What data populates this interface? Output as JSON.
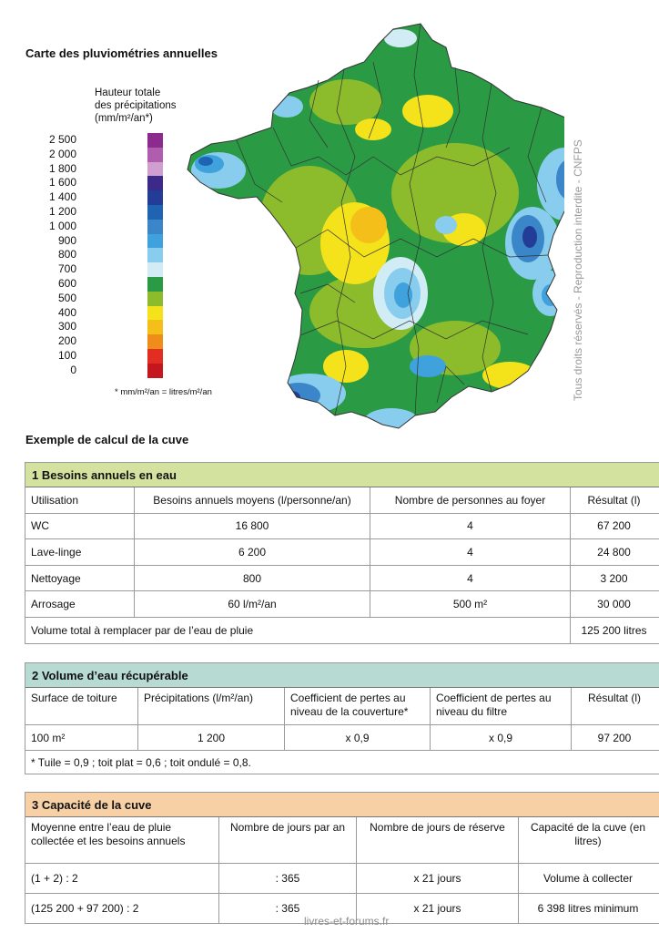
{
  "map_title": "Carte des pluviométries annuelles",
  "legend": {
    "title_lines": [
      "Hauteur totale",
      "des précipitations",
      "(mm/m²/an*)"
    ],
    "items": [
      {
        "label": "2 500",
        "color": "#8d2a8d"
      },
      {
        "label": "2 000",
        "color": "#b05db0"
      },
      {
        "label": "1 800",
        "color": "#cfa0cf"
      },
      {
        "label": "1 600",
        "color": "#3b2a8a"
      },
      {
        "label": "1 400",
        "color": "#223c97"
      },
      {
        "label": "1 200",
        "color": "#1f63b3"
      },
      {
        "label": "1 000",
        "color": "#3b86c8"
      },
      {
        "label": "900",
        "color": "#3fa2dd"
      },
      {
        "label": "800",
        "color": "#88cdee"
      },
      {
        "label": "700",
        "color": "#d2ecf6"
      },
      {
        "label": "600",
        "color": "#2a9a44"
      },
      {
        "label": "500",
        "color": "#8cbc2b"
      },
      {
        "label": "400",
        "color": "#f4e21a"
      },
      {
        "label": "300",
        "color": "#f4bf18"
      },
      {
        "label": "200",
        "color": "#ee8d1a"
      },
      {
        "label": "100",
        "color": "#e32d22"
      },
      {
        "label": "0",
        "color": "#c4161c"
      }
    ],
    "note": "* mm/m²/an = litres/m²/an"
  },
  "watermark": "Tous droits réservés - Reproduction interdite - CNFPS",
  "calc_title": "Exemple de calcul de la cuve",
  "table1": {
    "title": "1 Besoins annuels en eau",
    "headers": [
      "Utilisation",
      "Besoins annuels moyens (l/personne/an)",
      "Nombre de personnes au foyer",
      "Résultat (l)"
    ],
    "rows": [
      [
        "WC",
        "16 800",
        "4",
        "67 200"
      ],
      [
        "Lave-linge",
        "6 200",
        "4",
        "24 800"
      ],
      [
        "Nettoyage",
        "800",
        "4",
        "3 200"
      ],
      [
        "Arrosage",
        "60 l/m²/an",
        "500 m²",
        "30 000"
      ]
    ],
    "total_label": "Volume total à remplacer par de l’eau de pluie",
    "total_value": "125 200 litres"
  },
  "table2": {
    "title": "2 Volume d’eau récupérable",
    "headers": [
      "Surface de toiture",
      "Précipitations (l/m²/an)",
      "Coefficient de pertes au niveau de la couverture*",
      "Coefficient de pertes au niveau du filtre",
      "Résultat (l)"
    ],
    "rows": [
      [
        "100 m²",
        "1 200",
        "x 0,9",
        "x 0,9",
        "97 200"
      ]
    ],
    "note": "* Tuile = 0,9 ; toit plat = 0,6 ; toit ondulé = 0,8."
  },
  "table3": {
    "title": "3 Capacité de la cuve",
    "headers": [
      "Moyenne entre l’eau de pluie collectée et les besoins annuels",
      "Nombre de jours par an",
      "Nombre de jours de réserve",
      "Capacité de la cuve (en litres)"
    ],
    "rows": [
      [
        "(1 + 2) : 2",
        ": 365",
        "x 21 jours",
        "Volume à collecter"
      ],
      [
        "(125 200 + 97 200) : 2",
        ": 365",
        "x 21 jours",
        "6 398 litres minimum"
      ]
    ]
  },
  "footer": "livres-et-forums.fr"
}
